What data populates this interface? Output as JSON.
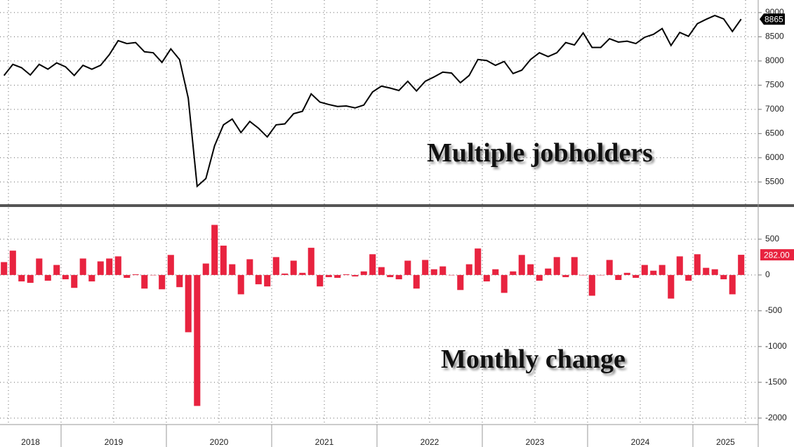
{
  "chart_data": [
    {
      "type": "line",
      "annotation": "Multiple jobholders",
      "color": "#000000",
      "x": [
        2018.458,
        2018.542,
        2018.625,
        2018.708,
        2018.792,
        2018.875,
        2018.958,
        2019.042,
        2019.125,
        2019.208,
        2019.292,
        2019.375,
        2019.458,
        2019.542,
        2019.625,
        2019.708,
        2019.792,
        2019.875,
        2019.958,
        2020.042,
        2020.125,
        2020.208,
        2020.292,
        2020.375,
        2020.458,
        2020.542,
        2020.625,
        2020.708,
        2020.792,
        2020.875,
        2020.958,
        2021.042,
        2021.125,
        2021.208,
        2021.292,
        2021.375,
        2021.458,
        2021.542,
        2021.625,
        2021.708,
        2021.792,
        2021.875,
        2021.958,
        2022.042,
        2022.125,
        2022.208,
        2022.292,
        2022.375,
        2022.458,
        2022.542,
        2022.625,
        2022.708,
        2022.792,
        2022.875,
        2022.958,
        2023.042,
        2023.125,
        2023.208,
        2023.292,
        2023.375,
        2023.458,
        2023.542,
        2023.625,
        2023.708,
        2023.792,
        2023.875,
        2023.958,
        2024.042,
        2024.125,
        2024.208,
        2024.292,
        2024.375,
        2024.458,
        2024.542,
        2024.625,
        2024.708,
        2024.792,
        2024.875,
        2024.958,
        2025.042,
        2025.125,
        2025.208,
        2025.292,
        2025.375,
        2025.458
      ],
      "values": [
        7700,
        7930,
        7860,
        7710,
        7930,
        7830,
        7960,
        7880,
        7700,
        7910,
        7830,
        7910,
        8130,
        8420,
        8360,
        8380,
        8190,
        8170,
        7970,
        8250,
        8030,
        7230,
        5410,
        5570,
        6250,
        6680,
        6800,
        6520,
        6750,
        6610,
        6430,
        6680,
        6700,
        6910,
        6960,
        7320,
        7150,
        7100,
        7060,
        7070,
        7030,
        7090,
        7360,
        7480,
        7440,
        7390,
        7580,
        7380,
        7580,
        7670,
        7770,
        7750,
        7550,
        7700,
        8030,
        8010,
        7910,
        7990,
        7740,
        7810,
        8030,
        8170,
        8090,
        8170,
        8380,
        8330,
        8580,
        8280,
        8280,
        8460,
        8390,
        8410,
        8360,
        8490,
        8550,
        8670,
        8320,
        8590,
        8510,
        8770,
        8860,
        8940,
        8870,
        8610,
        8865
      ],
      "xlim": [
        2018.42,
        2025.62
      ],
      "ylim": [
        5040,
        9260
      ],
      "yticks": [
        5500,
        6000,
        6500,
        7000,
        7500,
        8000,
        8500,
        9000
      ],
      "grid": true
    },
    {
      "type": "bar",
      "annotation": "Monthly change",
      "color": "#e8233f",
      "x": [
        2018.458,
        2018.542,
        2018.625,
        2018.708,
        2018.792,
        2018.875,
        2018.958,
        2019.042,
        2019.125,
        2019.208,
        2019.292,
        2019.375,
        2019.458,
        2019.542,
        2019.625,
        2019.708,
        2019.792,
        2019.875,
        2019.958,
        2020.042,
        2020.125,
        2020.208,
        2020.292,
        2020.375,
        2020.458,
        2020.542,
        2020.625,
        2020.708,
        2020.792,
        2020.875,
        2020.958,
        2021.042,
        2021.125,
        2021.208,
        2021.292,
        2021.375,
        2021.458,
        2021.542,
        2021.625,
        2021.708,
        2021.792,
        2021.875,
        2021.958,
        2022.042,
        2022.125,
        2022.208,
        2022.292,
        2022.375,
        2022.458,
        2022.542,
        2022.625,
        2022.708,
        2022.792,
        2022.875,
        2022.958,
        2023.042,
        2023.125,
        2023.208,
        2023.292,
        2023.375,
        2023.458,
        2023.542,
        2023.625,
        2023.708,
        2023.792,
        2023.875,
        2023.958,
        2024.042,
        2024.125,
        2024.208,
        2024.292,
        2024.375,
        2024.458,
        2024.542,
        2024.625,
        2024.708,
        2024.792,
        2024.875,
        2024.958,
        2025.042,
        2025.125,
        2025.208,
        2025.292,
        2025.375,
        2025.458
      ],
      "values": [
        180,
        340,
        -90,
        -110,
        230,
        -80,
        140,
        -60,
        -180,
        230,
        -90,
        190,
        230,
        260,
        -40,
        10,
        -190,
        0,
        -200,
        280,
        -170,
        -800,
        -1830,
        160,
        700,
        410,
        150,
        -270,
        220,
        -130,
        -160,
        250,
        20,
        200,
        30,
        380,
        -160,
        -30,
        -40,
        10,
        -20,
        50,
        290,
        110,
        -30,
        -60,
        200,
        -190,
        210,
        80,
        120,
        0,
        -210,
        150,
        370,
        -90,
        80,
        -250,
        50,
        280,
        150,
        -80,
        90,
        250,
        -30,
        250,
        0,
        -290,
        0,
        210,
        -70,
        30,
        -40,
        140,
        60,
        140,
        -330,
        260,
        -80,
        290,
        100,
        80,
        -60,
        -270,
        282
      ],
      "value_labels": [
        null,
        null,
        null,
        null,
        null,
        null,
        null,
        null,
        null,
        null,
        null,
        null,
        null,
        null,
        null,
        null,
        null,
        null,
        null,
        null,
        null,
        null,
        null,
        null,
        null,
        null,
        null,
        null,
        null,
        null,
        null,
        null,
        null,
        null,
        null,
        null,
        null,
        null,
        null,
        null,
        null,
        null,
        null,
        null,
        null,
        null,
        null,
        null,
        null,
        null,
        null,
        null,
        null,
        null,
        null,
        null,
        null,
        null,
        null,
        null,
        null,
        null,
        null,
        null,
        null,
        null,
        null,
        null,
        null,
        null,
        null,
        null,
        null,
        null,
        null,
        null,
        null,
        null,
        null,
        null,
        null,
        null,
        null,
        null,
        "282.00"
      ],
      "xlim": [
        2018.42,
        2025.62
      ],
      "ylim": [
        -2090,
        940
      ],
      "yticks": [
        -2000,
        -1500,
        -1000,
        -500,
        0,
        500
      ],
      "xticks": [
        2018,
        2019,
        2020,
        2021,
        2022,
        2023,
        2024,
        2025
      ],
      "grid": true
    }
  ]
}
